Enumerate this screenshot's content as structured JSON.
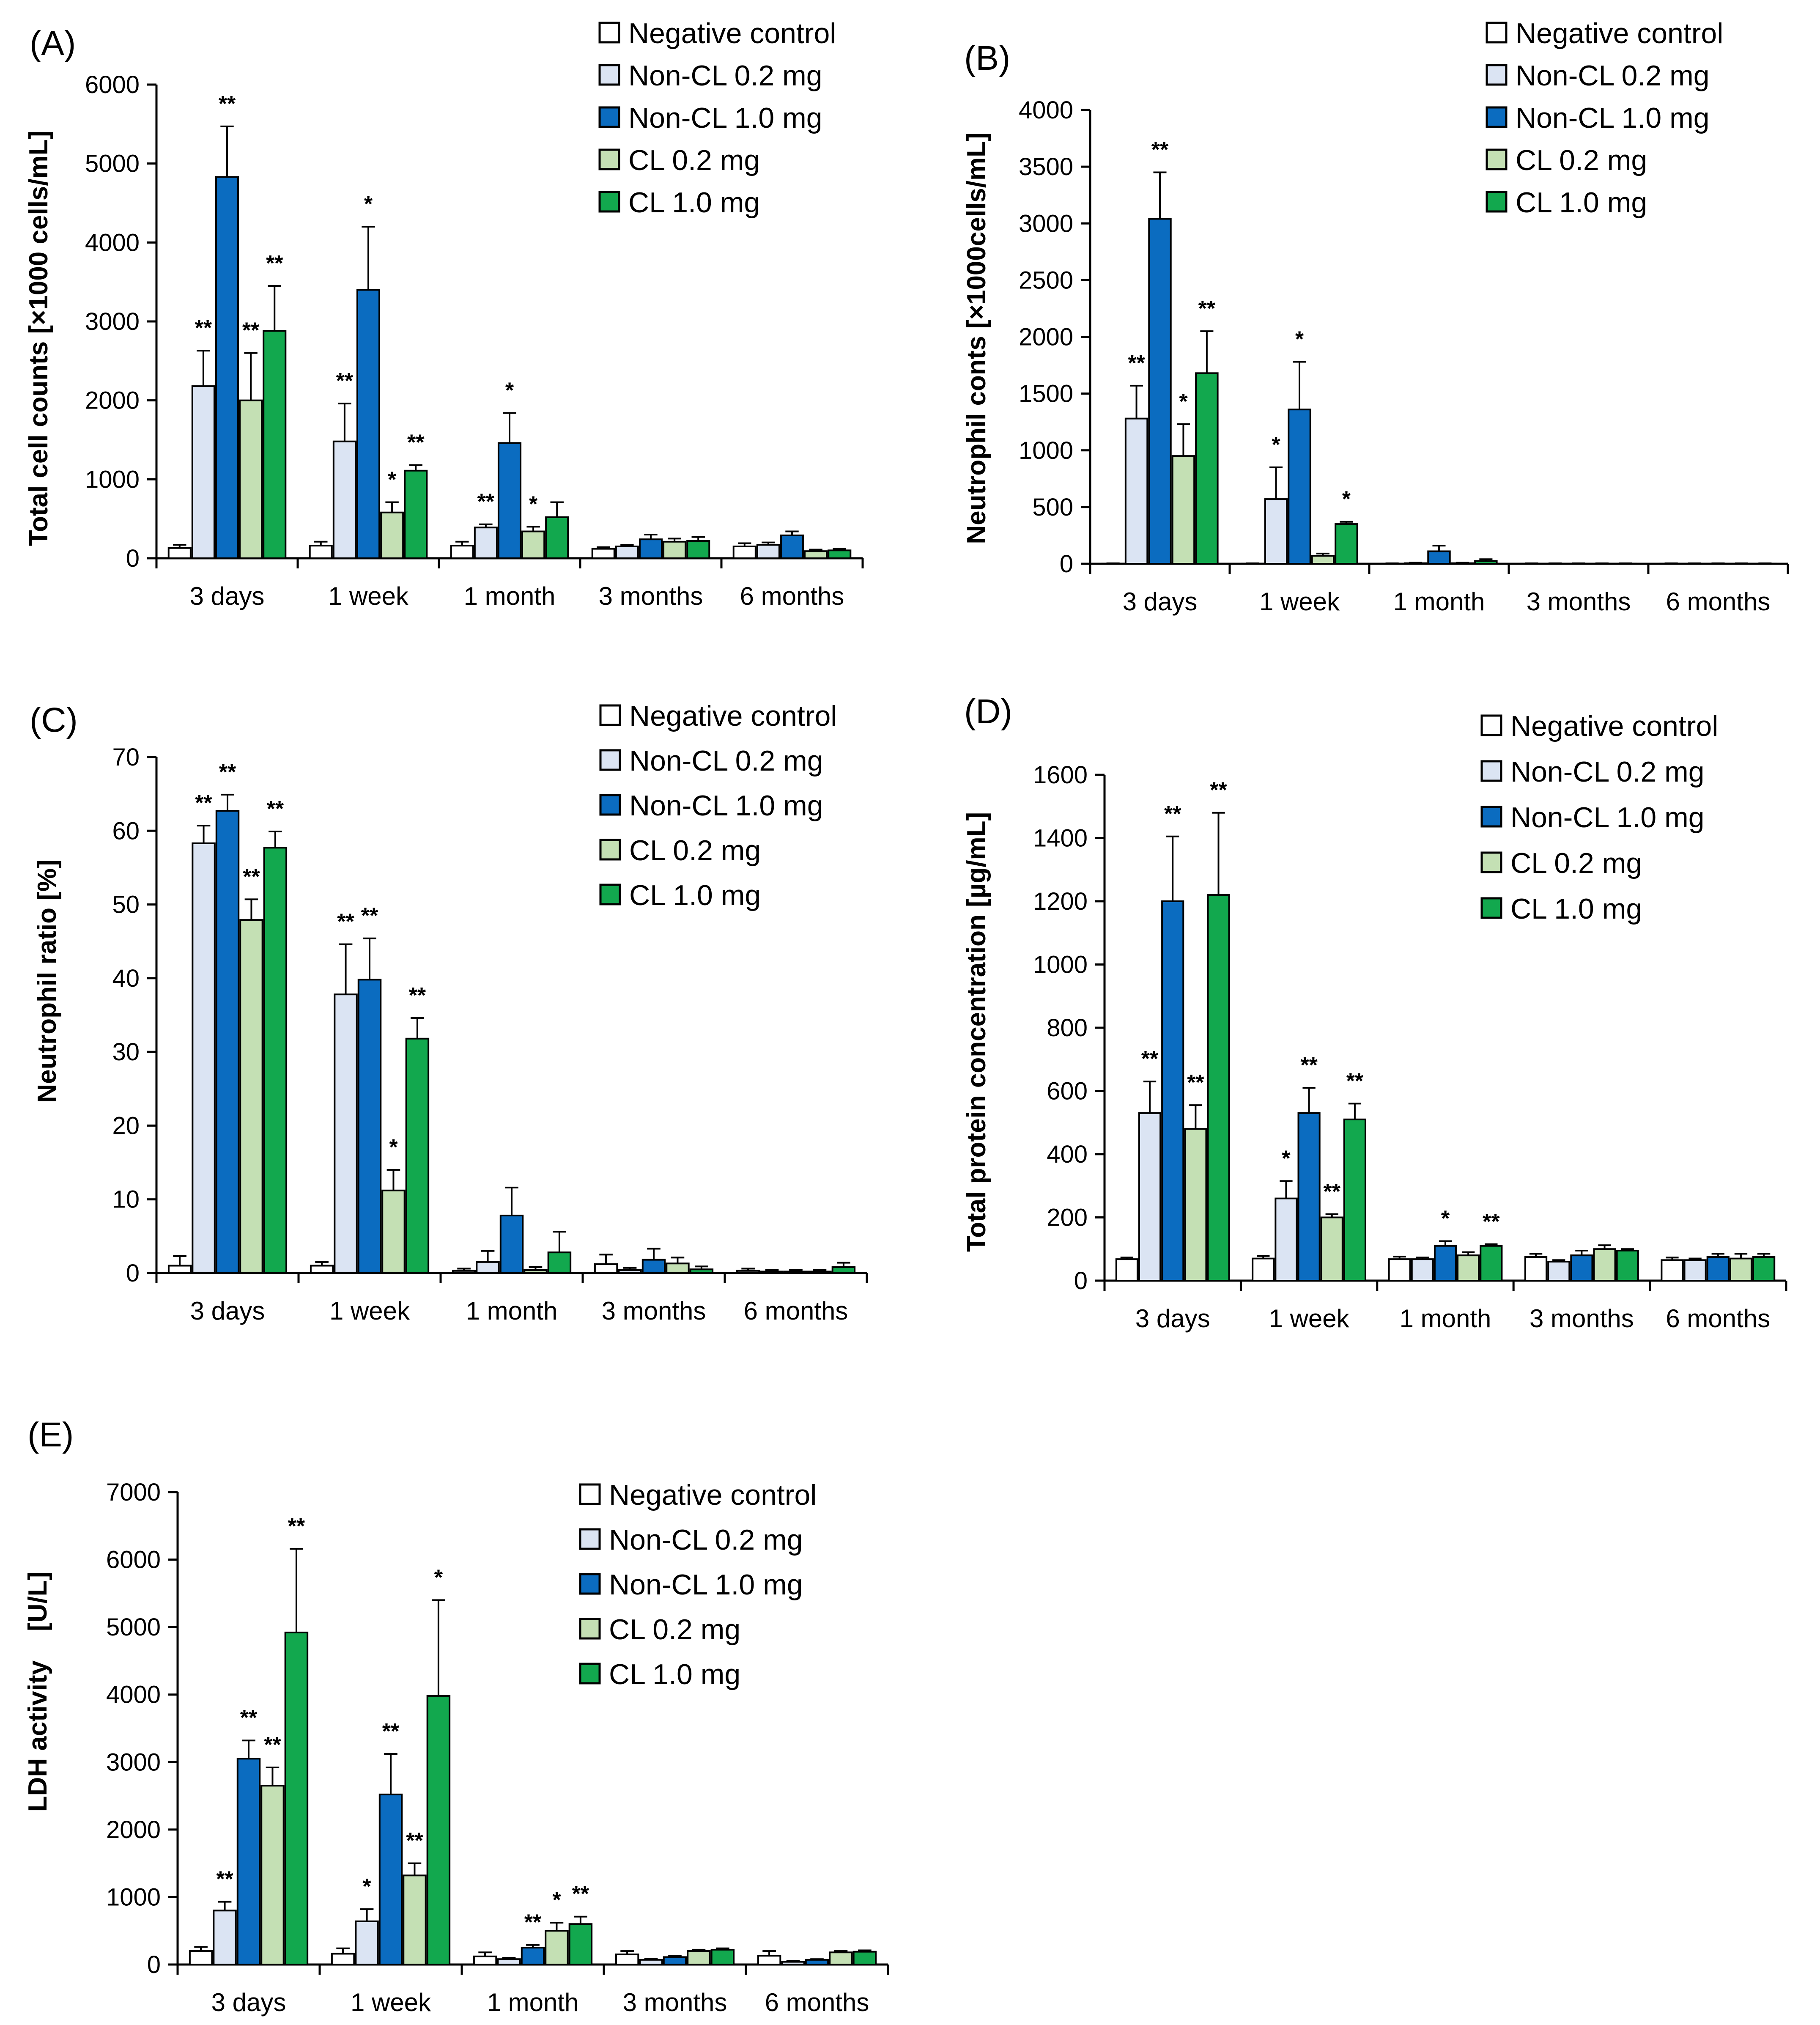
{
  "series_styles": [
    {
      "name": "Negative control",
      "color": "#ffffff"
    },
    {
      "name": "Non-CL 0.2 mg",
      "color": "#dbe4f3"
    },
    {
      "name": "Non-CL 1.0 mg",
      "color": "#0b6cc0"
    },
    {
      "name": "CL 0.2 mg",
      "color": "#c4e0b4"
    },
    {
      "name": "CL 1.0 mg",
      "color": "#12a84e"
    }
  ],
  "chart_data": [
    {
      "type": "bar",
      "panel": "(A)",
      "ylabel": "Total cell counts [×1000 cells/mL]",
      "ylim": [
        0,
        6000
      ],
      "yticks": [
        0,
        1000,
        2000,
        3000,
        4000,
        5000,
        6000
      ],
      "categories": [
        "3 days",
        "1 week",
        "1 month",
        "3 months",
        "6 months"
      ],
      "series": [
        {
          "name": "Negative control",
          "values": [
            130,
            160,
            160,
            120,
            150
          ],
          "errors": [
            40,
            50,
            50,
            20,
            40
          ],
          "sig": [
            "",
            "",
            "",
            "",
            ""
          ]
        },
        {
          "name": "Non-CL 0.2 mg",
          "values": [
            2180,
            1480,
            390,
            150,
            170
          ],
          "errors": [
            450,
            480,
            40,
            20,
            30
          ],
          "sig": [
            "**",
            "**",
            "**",
            "",
            ""
          ]
        },
        {
          "name": "Non-CL 1.0 mg",
          "values": [
            4830,
            3400,
            1460,
            240,
            290
          ],
          "errors": [
            640,
            800,
            380,
            60,
            50
          ],
          "sig": [
            "**",
            "*",
            "*",
            "",
            ""
          ]
        },
        {
          "name": "CL 0.2 mg",
          "values": [
            2000,
            580,
            340,
            210,
            90
          ],
          "errors": [
            600,
            130,
            60,
            40,
            20
          ],
          "sig": [
            "**",
            "*",
            "*",
            "",
            ""
          ]
        },
        {
          "name": "CL 1.0 mg",
          "values": [
            2880,
            1110,
            520,
            220,
            100
          ],
          "errors": [
            570,
            70,
            190,
            50,
            20
          ],
          "sig": [
            "**",
            "**",
            "",
            "",
            ""
          ]
        }
      ]
    },
    {
      "type": "bar",
      "panel": "(B)",
      "ylabel": "Neutrophil conts [×1000cells/mL]",
      "ylim": [
        0,
        4000
      ],
      "yticks": [
        0,
        500,
        1000,
        1500,
        2000,
        2500,
        3000,
        3500,
        4000
      ],
      "categories": [
        "3 days",
        "1 week",
        "1 month",
        "3 months",
        "6 months"
      ],
      "series": [
        {
          "name": "Negative control",
          "values": [
            2,
            2,
            2,
            2,
            2
          ],
          "errors": [
            2,
            2,
            2,
            2,
            2
          ],
          "sig": [
            "",
            "",
            "",
            "",
            ""
          ]
        },
        {
          "name": "Non-CL 0.2 mg",
          "values": [
            1280,
            570,
            5,
            2,
            2
          ],
          "errors": [
            290,
            280,
            5,
            2,
            2
          ],
          "sig": [
            "**",
            "*",
            "",
            "",
            ""
          ]
        },
        {
          "name": "Non-CL 1.0 mg",
          "values": [
            3040,
            1360,
            110,
            2,
            2
          ],
          "errors": [
            410,
            420,
            50,
            2,
            2
          ],
          "sig": [
            "**",
            "*",
            "",
            "",
            ""
          ]
        },
        {
          "name": "CL 0.2 mg",
          "values": [
            950,
            70,
            5,
            2,
            2
          ],
          "errors": [
            280,
            20,
            5,
            2,
            2
          ],
          "sig": [
            "*",
            "",
            "",
            "",
            ""
          ]
        },
        {
          "name": "CL 1.0 mg",
          "values": [
            1680,
            350,
            25,
            2,
            2
          ],
          "errors": [
            370,
            20,
            15,
            2,
            2
          ],
          "sig": [
            "**",
            "*",
            "",
            "",
            ""
          ]
        }
      ]
    },
    {
      "type": "bar",
      "panel": "(C)",
      "ylabel": "Neutrophil ratio [%]",
      "ylim": [
        0,
        70
      ],
      "yticks": [
        0,
        10,
        20,
        30,
        40,
        50,
        60,
        70
      ],
      "categories": [
        "3 days",
        "1 week",
        "1 month",
        "3 months",
        "6 months"
      ],
      "series": [
        {
          "name": "Negative control",
          "values": [
            1.0,
            1.0,
            0.3,
            1.2,
            0.3
          ],
          "errors": [
            1.3,
            0.5,
            0.3,
            1.3,
            0.3
          ],
          "sig": [
            "",
            "",
            "",
            "",
            ""
          ]
        },
        {
          "name": "Non-CL 0.2 mg",
          "values": [
            58.3,
            37.8,
            1.5,
            0.4,
            0.2
          ],
          "errors": [
            2.4,
            6.8,
            1.5,
            0.3,
            0.2
          ],
          "sig": [
            "**",
            "**",
            "",
            "",
            ""
          ]
        },
        {
          "name": "Non-CL 1.0 mg",
          "values": [
            62.7,
            39.8,
            7.8,
            1.8,
            0.2
          ],
          "errors": [
            2.2,
            5.6,
            3.8,
            1.5,
            0.2
          ],
          "sig": [
            "**",
            "**",
            "",
            "",
            ""
          ]
        },
        {
          "name": "CL 0.2 mg",
          "values": [
            47.9,
            11.2,
            0.4,
            1.3,
            0.2
          ],
          "errors": [
            2.8,
            2.8,
            0.4,
            0.8,
            0.2
          ],
          "sig": [
            "**",
            "*",
            "",
            "",
            ""
          ]
        },
        {
          "name": "CL 1.0 mg",
          "values": [
            57.7,
            31.8,
            2.8,
            0.5,
            0.8
          ],
          "errors": [
            2.2,
            2.8,
            2.8,
            0.4,
            0.6
          ],
          "sig": [
            "**",
            "**",
            "",
            "",
            ""
          ]
        }
      ]
    },
    {
      "type": "bar",
      "panel": "(D)",
      "ylabel": "Total protein concentration [µg/mL]",
      "ylim": [
        0,
        1600
      ],
      "yticks": [
        0,
        200,
        400,
        600,
        800,
        1000,
        1200,
        1400,
        1600
      ],
      "categories": [
        "3 days",
        "1 week",
        "1 month",
        "3 months",
        "6 months"
      ],
      "series": [
        {
          "name": "Negative control",
          "values": [
            68,
            70,
            68,
            75,
            65
          ],
          "errors": [
            5,
            8,
            8,
            10,
            8
          ],
          "sig": [
            "",
            "",
            "",
            "",
            ""
          ]
        },
        {
          "name": "Non-CL 0.2 mg",
          "values": [
            530,
            260,
            68,
            60,
            65
          ],
          "errors": [
            100,
            55,
            5,
            5,
            5
          ],
          "sig": [
            "**",
            "*",
            "",
            "",
            ""
          ]
        },
        {
          "name": "Non-CL 1.0 mg",
          "values": [
            1200,
            530,
            110,
            80,
            75
          ],
          "errors": [
            205,
            80,
            15,
            15,
            10
          ],
          "sig": [
            "**",
            "**",
            "*",
            "",
            ""
          ]
        },
        {
          "name": "CL 0.2 mg",
          "values": [
            480,
            200,
            80,
            100,
            70
          ],
          "errors": [
            75,
            10,
            10,
            12,
            15
          ],
          "sig": [
            "**",
            "**",
            "",
            "",
            ""
          ]
        },
        {
          "name": "CL 1.0 mg",
          "values": [
            1220,
            510,
            110,
            95,
            75
          ],
          "errors": [
            260,
            50,
            5,
            5,
            10
          ],
          "sig": [
            "**",
            "**",
            "**",
            "",
            ""
          ]
        }
      ]
    },
    {
      "type": "bar",
      "panel": "(E)",
      "ylabel": "LDH activity    [U/L]",
      "ylim": [
        0,
        7000
      ],
      "yticks": [
        0,
        1000,
        2000,
        3000,
        4000,
        5000,
        6000,
        7000
      ],
      "categories": [
        "3 days",
        "1 week",
        "1 month",
        "3 months",
        "6 months"
      ],
      "series": [
        {
          "name": "Negative control",
          "values": [
            200,
            160,
            120,
            150,
            130
          ],
          "errors": [
            60,
            80,
            60,
            50,
            70
          ],
          "sig": [
            "",
            "",
            "",
            "",
            ""
          ]
        },
        {
          "name": "Non-CL 0.2 mg",
          "values": [
            800,
            640,
            80,
            70,
            40
          ],
          "errors": [
            130,
            180,
            20,
            15,
            10
          ],
          "sig": [
            "**",
            "*",
            "",
            "",
            ""
          ]
        },
        {
          "name": "Non-CL 1.0 mg",
          "values": [
            3050,
            2520,
            250,
            110,
            70
          ],
          "errors": [
            270,
            600,
            40,
            20,
            10
          ],
          "sig": [
            "**",
            "**",
            "**",
            "",
            ""
          ]
        },
        {
          "name": "CL 0.2 mg",
          "values": [
            2650,
            1320,
            500,
            200,
            180
          ],
          "errors": [
            270,
            180,
            120,
            20,
            20
          ],
          "sig": [
            "**",
            "**",
            "*",
            "",
            ""
          ]
        },
        {
          "name": "CL 1.0 mg",
          "values": [
            4920,
            3980,
            600,
            220,
            190
          ],
          "errors": [
            1240,
            1420,
            110,
            20,
            20
          ],
          "sig": [
            "**",
            "*",
            "**",
            "",
            ""
          ]
        }
      ]
    }
  ]
}
